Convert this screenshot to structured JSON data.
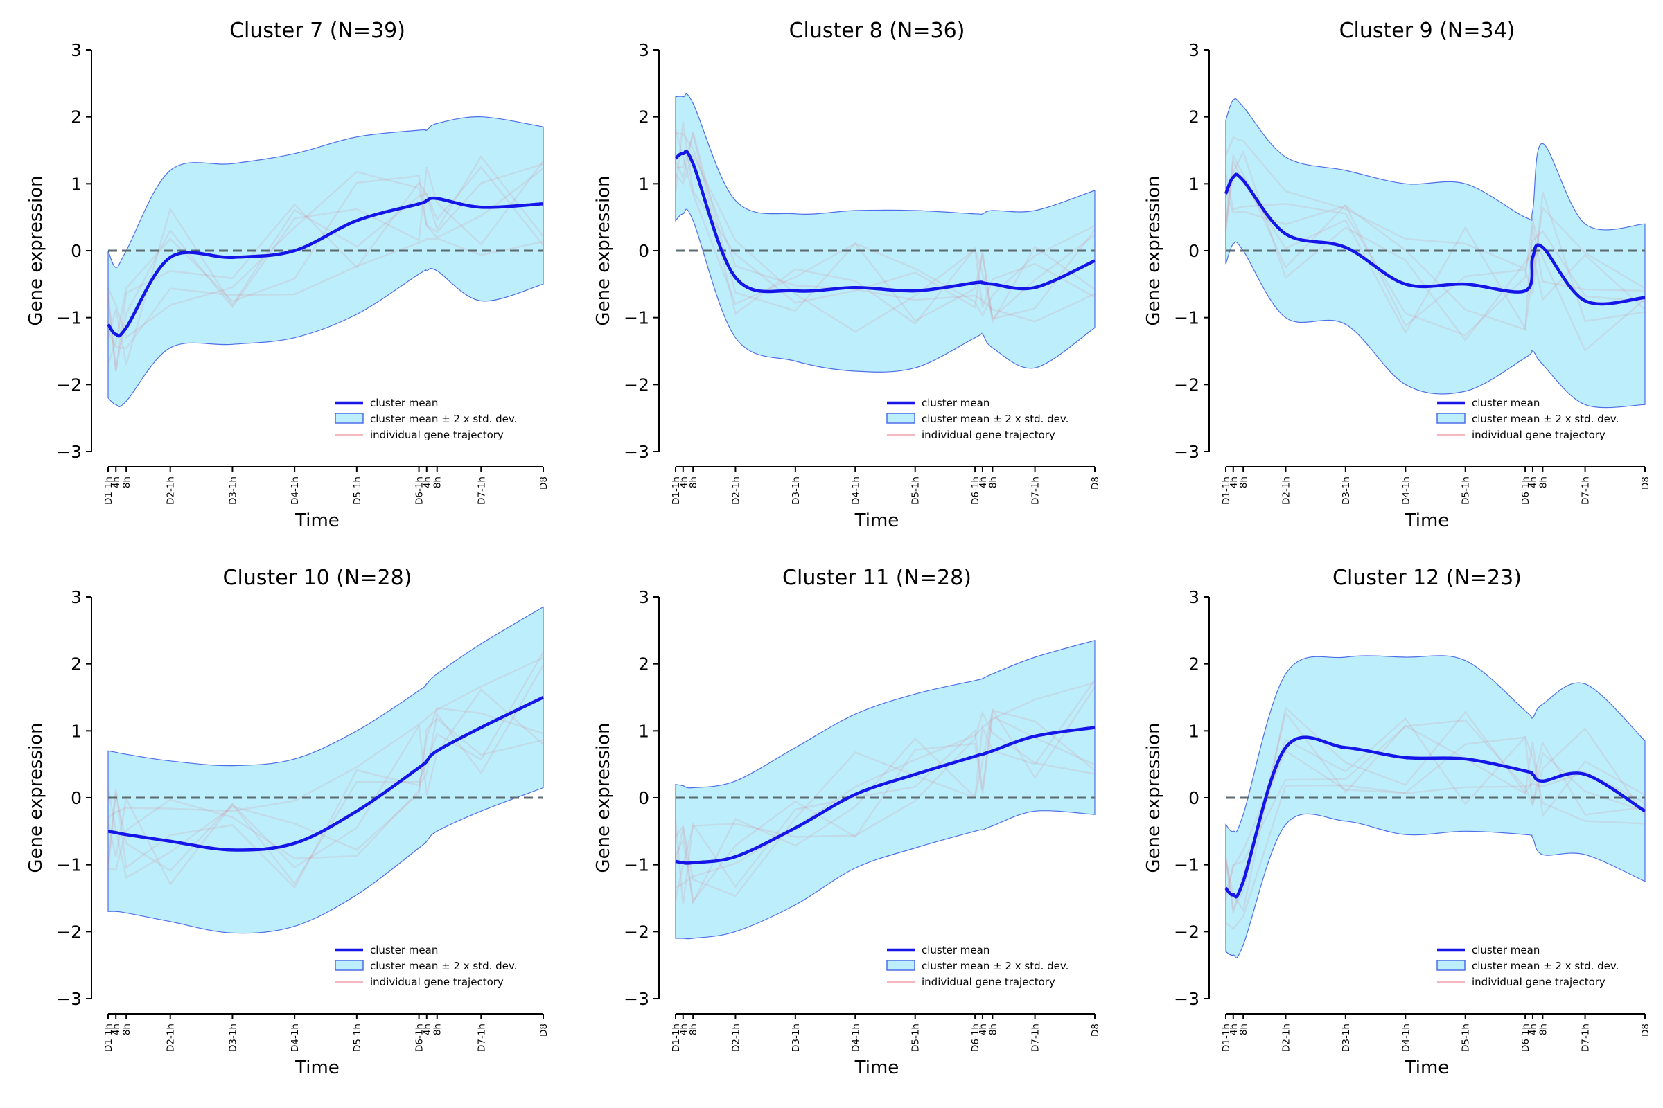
{
  "chart_data": [
    {
      "type": "line",
      "title": "Cluster 7 (N=39)",
      "xlabel": "Time",
      "ylabel": "Gene expression",
      "ylim": [
        -3,
        3
      ],
      "yticks": [
        "−3",
        "−2",
        "−1",
        "0",
        "1",
        "2",
        "3"
      ],
      "x_categories": [
        "D1-1h",
        "4h",
        "8h",
        "D2-1h",
        "D3-1h",
        "D4-1h",
        "D5-1h",
        "D6-1h",
        "4h",
        "8h",
        "D7-1h",
        "D8"
      ],
      "x_hours": [
        1,
        4,
        8,
        25,
        49,
        73,
        97,
        121,
        124,
        128,
        145,
        169
      ],
      "series": [
        {
          "name": "cluster mean",
          "values": [
            -1.1,
            -1.25,
            -1.15,
            -0.1,
            -0.1,
            0.0,
            0.45,
            0.7,
            0.75,
            0.78,
            0.65,
            0.7
          ]
        },
        {
          "name": "cluster mean ± 2 x std. dev.",
          "lower": [
            -2.2,
            -2.3,
            -2.25,
            -1.45,
            -1.4,
            -1.3,
            -0.95,
            -0.35,
            -0.3,
            -0.3,
            -0.75,
            -0.5
          ],
          "upper": [
            0.0,
            -0.25,
            0.0,
            1.2,
            1.3,
            1.45,
            1.7,
            1.8,
            1.8,
            1.9,
            2.0,
            1.85
          ]
        }
      ],
      "reference_line": 0,
      "legend": [
        "cluster mean",
        "cluster mean ± 2 x std. dev.",
        "individual gene trajectory"
      ],
      "legend_position": "lower-right"
    },
    {
      "type": "line",
      "title": "Cluster 8 (N=36)",
      "xlabel": "Time",
      "ylabel": "Gene expression",
      "ylim": [
        -3,
        3
      ],
      "yticks": [
        "−3",
        "−2",
        "−1",
        "0",
        "1",
        "2",
        "3"
      ],
      "x_categories": [
        "D1-1h",
        "4h",
        "8h",
        "D2-1h",
        "D3-1h",
        "D4-1h",
        "D5-1h",
        "D6-1h",
        "4h",
        "8h",
        "D7-1h",
        "D8"
      ],
      "x_hours": [
        1,
        4,
        8,
        25,
        49,
        73,
        97,
        121,
        124,
        128,
        145,
        169
      ],
      "series": [
        {
          "name": "cluster mean",
          "values": [
            1.38,
            1.45,
            1.3,
            -0.4,
            -0.6,
            -0.55,
            -0.6,
            -0.48,
            -0.48,
            -0.5,
            -0.55,
            -0.15
          ]
        },
        {
          "name": "cluster mean ± 2 x std. dev.",
          "lower": [
            0.45,
            0.55,
            0.45,
            -1.3,
            -1.65,
            -1.8,
            -1.75,
            -1.3,
            -1.25,
            -1.45,
            -1.75,
            -1.15
          ],
          "upper": [
            2.3,
            2.3,
            2.2,
            0.75,
            0.55,
            0.6,
            0.6,
            0.55,
            0.55,
            0.6,
            0.6,
            0.9
          ]
        }
      ],
      "reference_line": 0,
      "legend": [
        "cluster mean",
        "cluster mean ± 2 x std. dev.",
        "individual gene trajectory"
      ],
      "legend_position": "lower-right"
    },
    {
      "type": "line",
      "title": "Cluster 9 (N=34)",
      "xlabel": "Time",
      "ylabel": "Gene expression",
      "ylim": [
        -3,
        3
      ],
      "yticks": [
        "−3",
        "−2",
        "−1",
        "0",
        "1",
        "2",
        "3"
      ],
      "x_categories": [
        "D1-1h",
        "4h",
        "8h",
        "D2-1h",
        "D3-1h",
        "D4-1h",
        "D5-1h",
        "D6-1h",
        "4h",
        "8h",
        "D7-1h",
        "D8"
      ],
      "x_hours": [
        1,
        4,
        8,
        25,
        49,
        73,
        97,
        121,
        124,
        128,
        145,
        169
      ],
      "series": [
        {
          "name": "cluster mean",
          "values": [
            0.85,
            1.1,
            1.05,
            0.25,
            0.05,
            -0.5,
            -0.5,
            -0.6,
            -0.1,
            0.05,
            -0.75,
            -0.7
          ]
        },
        {
          "name": "cluster mean ± 2 x std. dev.",
          "lower": [
            -0.2,
            0.1,
            0.0,
            -1.0,
            -1.1,
            -2.0,
            -2.1,
            -1.6,
            -1.5,
            -1.7,
            -2.3,
            -2.3
          ],
          "upper": [
            1.95,
            2.25,
            2.15,
            1.4,
            1.2,
            1.0,
            1.0,
            0.5,
            0.6,
            1.6,
            0.4,
            0.4
          ]
        }
      ],
      "reference_line": 0,
      "legend": [
        "cluster mean",
        "cluster mean ± 2 x std. dev.",
        "individual gene trajectory"
      ],
      "legend_position": "lower-right"
    },
    {
      "type": "line",
      "title": "Cluster 10 (N=28)",
      "xlabel": "Time",
      "ylabel": "Gene expression",
      "ylim": [
        -3,
        3
      ],
      "yticks": [
        "−3",
        "−2",
        "−1",
        "0",
        "1",
        "2",
        "3"
      ],
      "x_categories": [
        "D1-1h",
        "4h",
        "8h",
        "D2-1h",
        "D3-1h",
        "D4-1h",
        "D5-1h",
        "D6-1h",
        "4h",
        "8h",
        "D7-1h",
        "D8"
      ],
      "x_hours": [
        1,
        4,
        8,
        25,
        49,
        73,
        97,
        121,
        124,
        128,
        145,
        169
      ],
      "series": [
        {
          "name": "cluster mean",
          "values": [
            -0.5,
            -0.52,
            -0.55,
            -0.65,
            -0.78,
            -0.68,
            -0.2,
            0.45,
            0.55,
            0.7,
            1.05,
            1.5
          ]
        },
        {
          "name": "cluster mean ± 2 x std. dev.",
          "lower": [
            -1.7,
            -1.7,
            -1.72,
            -1.85,
            -2.02,
            -1.92,
            -1.45,
            -0.75,
            -0.65,
            -0.5,
            -0.2,
            0.15
          ],
          "upper": [
            0.7,
            0.68,
            0.65,
            0.55,
            0.48,
            0.58,
            1.0,
            1.6,
            1.7,
            1.85,
            2.3,
            2.85
          ]
        }
      ],
      "reference_line": 0,
      "legend": [
        "cluster mean",
        "cluster mean ± 2 x std. dev.",
        "individual gene trajectory"
      ],
      "legend_position": "lower-right"
    },
    {
      "type": "line",
      "title": "Cluster 11 (N=28)",
      "xlabel": "Time",
      "ylabel": "Gene expression",
      "ylim": [
        -3,
        3
      ],
      "yticks": [
        "−3",
        "−2",
        "−1",
        "0",
        "1",
        "2",
        "3"
      ],
      "x_categories": [
        "D1-1h",
        "4h",
        "8h",
        "D2-1h",
        "D3-1h",
        "D4-1h",
        "D5-1h",
        "D6-1h",
        "4h",
        "8h",
        "D7-1h",
        "D8"
      ],
      "x_hours": [
        1,
        4,
        8,
        25,
        49,
        73,
        97,
        121,
        124,
        128,
        145,
        169
      ],
      "series": [
        {
          "name": "cluster mean",
          "values": [
            -0.95,
            -0.97,
            -0.97,
            -0.88,
            -0.45,
            0.05,
            0.35,
            0.62,
            0.65,
            0.7,
            0.92,
            1.05
          ]
        },
        {
          "name": "cluster mean ± 2 x std. dev.",
          "lower": [
            -2.1,
            -2.1,
            -2.1,
            -2.0,
            -1.6,
            -1.05,
            -0.75,
            -0.5,
            -0.48,
            -0.42,
            -0.2,
            -0.25
          ],
          "upper": [
            0.2,
            0.18,
            0.15,
            0.25,
            0.75,
            1.25,
            1.55,
            1.75,
            1.78,
            1.85,
            2.1,
            2.35
          ]
        }
      ],
      "reference_line": 0,
      "legend": [
        "cluster mean",
        "cluster mean ± 2 x std. dev.",
        "individual gene trajectory"
      ],
      "legend_position": "lower-right"
    },
    {
      "type": "line",
      "title": "Cluster 12 (N=23)",
      "xlabel": "Time",
      "ylabel": "Gene expression",
      "ylim": [
        -3,
        3
      ],
      "yticks": [
        "−3",
        "−2",
        "−1",
        "0",
        "1",
        "2",
        "3"
      ],
      "x_categories": [
        "D1-1h",
        "4h",
        "8h",
        "D2-1h",
        "D3-1h",
        "D4-1h",
        "D5-1h",
        "D6-1h",
        "4h",
        "8h",
        "D7-1h",
        "D8"
      ],
      "x_hours": [
        1,
        4,
        8,
        25,
        49,
        73,
        97,
        121,
        124,
        128,
        145,
        169
      ],
      "series": [
        {
          "name": "cluster mean",
          "values": [
            -1.35,
            -1.45,
            -1.25,
            0.75,
            0.75,
            0.6,
            0.58,
            0.4,
            0.35,
            0.25,
            0.35,
            -0.2
          ]
        },
        {
          "name": "cluster mean ± 2 x std. dev.",
          "lower": [
            -2.3,
            -2.35,
            -2.2,
            -0.4,
            -0.35,
            -0.55,
            -0.5,
            -0.55,
            -0.6,
            -0.85,
            -0.85,
            -1.25
          ],
          "upper": [
            -0.4,
            -0.5,
            -0.25,
            1.85,
            2.1,
            2.1,
            2.05,
            1.3,
            1.2,
            1.4,
            1.7,
            0.85
          ]
        }
      ],
      "reference_line": 0,
      "legend": [
        "cluster mean",
        "cluster mean ± 2 x std. dev.",
        "individual gene trajectory"
      ],
      "legend_position": "lower-right"
    }
  ]
}
